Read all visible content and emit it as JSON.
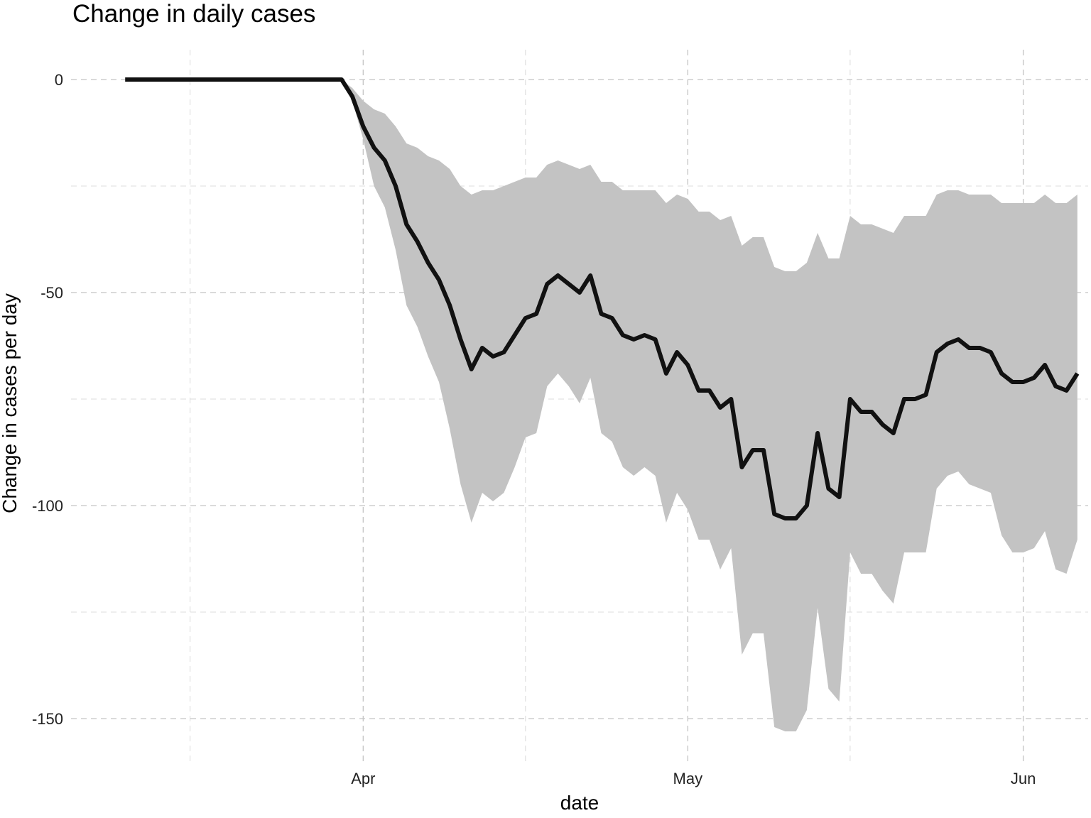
{
  "chart_data": {
    "type": "line",
    "title": "Change in daily cases",
    "xlabel": "date",
    "ylabel": "Change in cases per day",
    "x_start": "2020-03-10",
    "x_tick_labels": [
      {
        "date": "2020-04-01",
        "label": "Apr"
      },
      {
        "date": "2020-05-01",
        "label": "May"
      },
      {
        "date": "2020-06-01",
        "label": "Jun"
      }
    ],
    "x_minor_dates": [
      "2020-03-16",
      "2020-04-16",
      "2020-05-16"
    ],
    "y_ticks": [
      0,
      -50,
      -100,
      -150
    ],
    "y_minor": [
      -25,
      -75,
      -125
    ],
    "xlim": [
      "2020-03-05",
      "2020-06-07"
    ],
    "ylim": [
      -160,
      7
    ],
    "grid": true,
    "legend": "none",
    "colors": {
      "line": "#111111",
      "band": "#c3c3c3"
    },
    "series": [
      {
        "values": [
          0,
          0,
          0,
          0,
          0,
          0,
          0,
          0,
          0,
          0,
          0,
          0,
          0,
          0,
          0,
          0,
          0,
          0,
          0,
          0,
          0,
          -4,
          -11,
          -16,
          -19,
          -25,
          -34,
          -38,
          -43,
          -47,
          -53,
          -61,
          -68,
          -63,
          -65,
          -64,
          -60,
          -56,
          -55,
          -48,
          -46,
          -48,
          -50,
          -46,
          -55,
          -56,
          -60,
          -61,
          -60,
          -61,
          -69,
          -64,
          -67,
          -73,
          -73,
          -77,
          -75,
          -91,
          -87,
          -87,
          -102,
          -103,
          -103,
          -100,
          -83,
          -96,
          -98,
          -75,
          -78,
          -78,
          -81,
          -83,
          -75,
          -75,
          -74,
          -64,
          -62,
          -61,
          -63,
          -63,
          -64,
          -69,
          -71,
          -71,
          -70,
          -67,
          -72,
          -73,
          -69
        ],
        "lower": [
          0,
          0,
          0,
          0,
          0,
          0,
          0,
          0,
          0,
          0,
          0,
          0,
          0,
          0,
          0,
          0,
          0,
          0,
          0,
          0,
          0,
          -5,
          -14,
          -25,
          -30,
          -40,
          -53,
          -58,
          -65,
          -71,
          -82,
          -95,
          -104,
          -97,
          -99,
          -97,
          -91,
          -84,
          -83,
          -72,
          -69,
          -72,
          -76,
          -70,
          -83,
          -85,
          -91,
          -93,
          -91,
          -93,
          -104,
          -97,
          -101,
          -108,
          -108,
          -115,
          -110,
          -135,
          -130,
          -130,
          -152,
          -153,
          -153,
          -148,
          -124,
          -143,
          -146,
          -111,
          -116,
          -116,
          -120,
          -123,
          -111,
          -111,
          -111,
          -96,
          -93,
          -92,
          -95,
          -96,
          -97,
          -107,
          -111,
          -111,
          -110,
          -106,
          -115,
          -116,
          -108
        ],
        "upper": [
          0,
          0,
          0,
          0,
          0,
          0,
          0,
          0,
          0,
          0,
          0,
          0,
          0,
          0,
          0,
          0,
          0,
          0,
          0,
          0,
          0,
          -2,
          -5,
          -7,
          -8,
          -11,
          -15,
          -16,
          -18,
          -19,
          -21,
          -25,
          -27,
          -26,
          -26,
          -25,
          -24,
          -23,
          -23,
          -20,
          -19,
          -20,
          -21,
          -20,
          -24,
          -24,
          -26,
          -26,
          -26,
          -26,
          -29,
          -27,
          -28,
          -31,
          -31,
          -33,
          -32,
          -39,
          -37,
          -37,
          -44,
          -45,
          -45,
          -43,
          -36,
          -42,
          -42,
          -32,
          -34,
          -34,
          -35,
          -36,
          -32,
          -32,
          -32,
          -27,
          -26,
          -26,
          -27,
          -27,
          -27,
          -29,
          -29,
          -29,
          -29,
          -27,
          -29,
          -29,
          -27
        ]
      }
    ]
  }
}
